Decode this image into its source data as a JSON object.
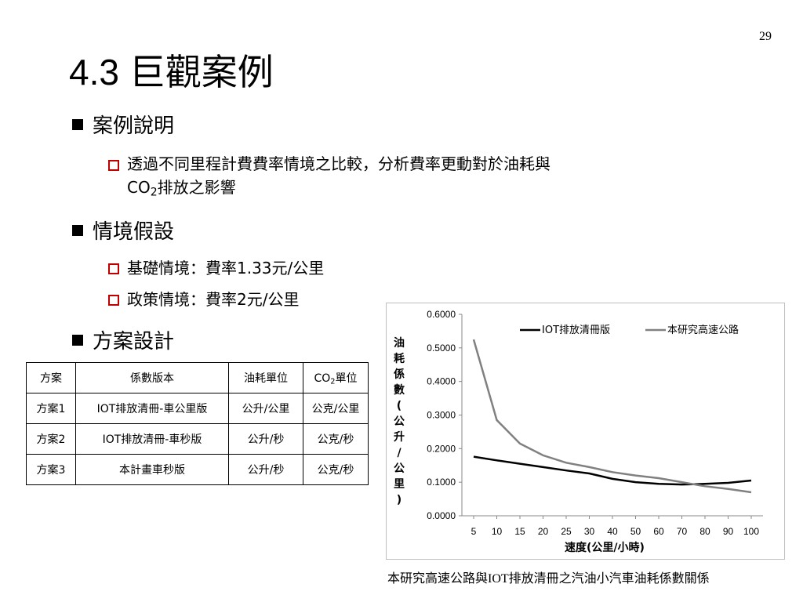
{
  "page_number": "29",
  "title": "4.3 巨觀案例",
  "section1": {
    "heading": "案例說明",
    "item_line1": "透過不同里程計費費率情境之比較，分析費率更動對於油耗與",
    "item_line2_pre": "CO",
    "item_line2_sub": "2",
    "item_line2_post": "排放之影響"
  },
  "section2": {
    "heading": "情境假設",
    "items": [
      "基礎情境：費率1.33元/公里",
      "政策情境：費率2元/公里"
    ]
  },
  "section3": {
    "heading": "方案設計"
  },
  "table": {
    "headers": [
      "方案",
      "係數版本",
      "油耗單位",
      "CO",
      "2",
      "單位"
    ],
    "rows": [
      [
        "方案1",
        "IOT排放清冊-車公里版",
        "公升/公里",
        "公克/公里"
      ],
      [
        "方案2",
        "IOT排放清冊-車秒版",
        "公升/秒",
        "公克/秒"
      ],
      [
        "方案3",
        "本計畫車秒版",
        "公升/秒",
        "公克/秒"
      ]
    ]
  },
  "chart_data": {
    "type": "line",
    "x": [
      5,
      10,
      15,
      20,
      25,
      30,
      40,
      50,
      60,
      70,
      80,
      90,
      100
    ],
    "series": [
      {
        "name": "IOT排放清冊版",
        "color": "#000000",
        "values": [
          0.176,
          0.165,
          0.155,
          0.145,
          0.135,
          0.126,
          0.11,
          0.1,
          0.095,
          0.093,
          0.095,
          0.098,
          0.105
        ]
      },
      {
        "name": "本研究高速公路",
        "color": "#808080",
        "values": [
          0.525,
          0.285,
          0.215,
          0.18,
          0.158,
          0.145,
          0.13,
          0.12,
          0.112,
          0.1,
          0.088,
          0.08,
          0.07
        ]
      }
    ],
    "yticks": [
      "0.0000",
      "0.1000",
      "0.2000",
      "0.3000",
      "0.4000",
      "0.5000",
      "0.6000"
    ],
    "ylim": [
      0,
      0.6
    ],
    "xlabel": "速度(公里/小時)",
    "ylabel": "油耗係數(公升/公里)",
    "legend_position": "top-right",
    "grid": true
  },
  "caption": "本研究高速公路與IOT排放清冊之汽油小汽車油耗係數關係"
}
